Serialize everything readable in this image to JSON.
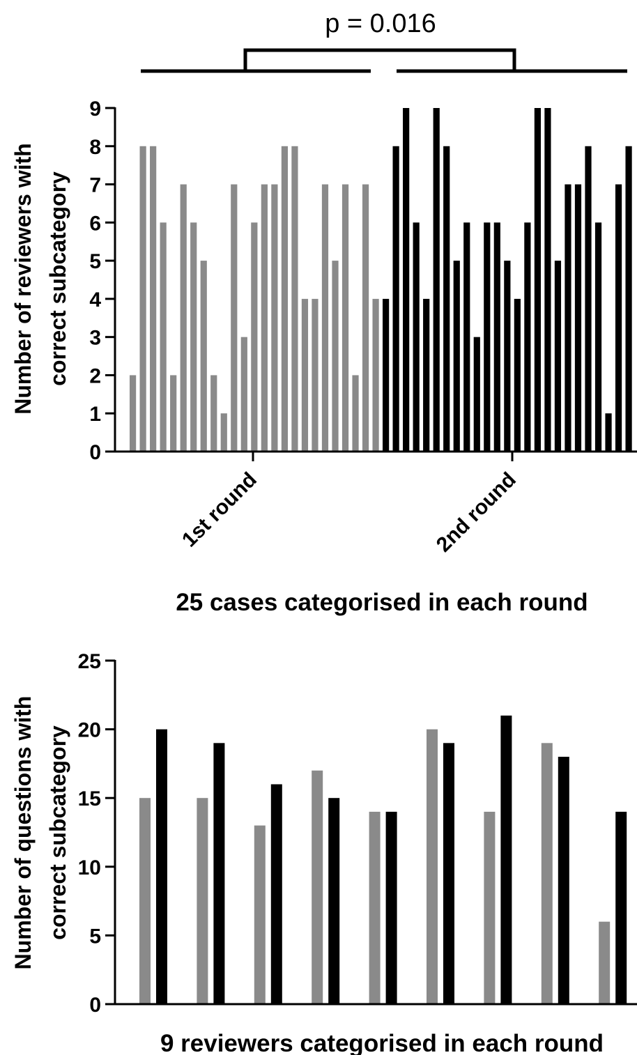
{
  "chart_data": [
    {
      "type": "bar",
      "ylabel_line1": "Number of reviewers with",
      "ylabel_line2": "correct subcategory",
      "xlabel": "25 cases categorised in each round",
      "ylim": [
        0,
        9
      ],
      "yticks": [
        0,
        1,
        2,
        3,
        4,
        5,
        6,
        7,
        8,
        9
      ],
      "groups": [
        "1st round",
        "2nd round"
      ],
      "annotation": "p = 0.016",
      "colors": {
        "1st round": "#8a8a8a",
        "2nd round": "#000000"
      },
      "series": [
        {
          "values": [
            2,
            8,
            8,
            6,
            2,
            7,
            6,
            5,
            2,
            1,
            7,
            3,
            6,
            7,
            7,
            8,
            8,
            4,
            4,
            7,
            5,
            7,
            2,
            7,
            4
          ]
        },
        {
          "values": [
            4,
            8,
            9,
            6,
            4,
            9,
            8,
            5,
            6,
            3,
            6,
            6,
            5,
            4,
            6,
            9,
            9,
            5,
            7,
            7,
            8,
            6,
            1,
            7,
            8
          ]
        }
      ]
    },
    {
      "type": "bar",
      "ylabel_line1": "Number of questions with",
      "ylabel_line2": "correct subcategory",
      "xlabel": "9 reviewers categorised in each round",
      "ylim": [
        0,
        25
      ],
      "yticks": [
        0,
        5,
        10,
        15,
        20,
        25
      ],
      "colors": {
        "1st round": "#8a8a8a",
        "2nd round": "#000000"
      },
      "series": [
        {
          "values": [
            15,
            15,
            13,
            17,
            14,
            20,
            14,
            19,
            6
          ]
        },
        {
          "values": [
            20,
            19,
            16,
            15,
            14,
            19,
            21,
            18,
            14
          ]
        }
      ]
    }
  ]
}
